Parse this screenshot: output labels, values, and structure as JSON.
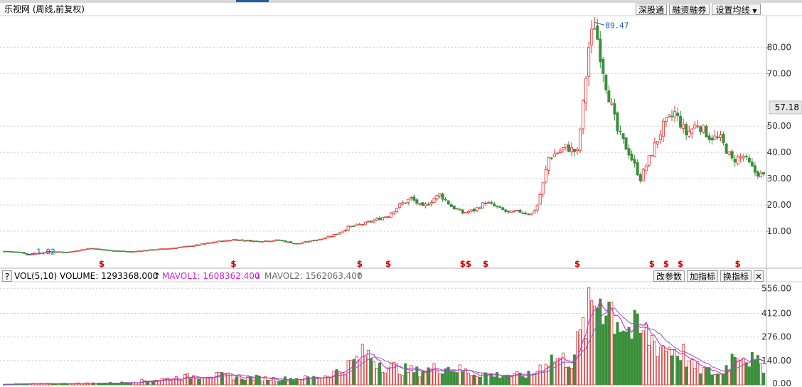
{
  "title": "乐视网 (周线,前复权)",
  "buttons": {
    "shen_gu_tong": "深股通",
    "rong_zi": "融资融券",
    "ma_settings": "设置均线",
    "params": "改参数",
    "add_indicator": "加指标",
    "switch_indicator": "换指标",
    "close": "✕",
    "help": "?"
  },
  "vol_legend": {
    "name": "VOL(5,10)",
    "volume_label": "VOLUME: 1293368.000",
    "mavol1_label": "MAVOL1: 1608362.400",
    "mavol2_label": "MAVOL2: 1562063.400",
    "up_arrow": "↑",
    "down_arrow": "↓"
  },
  "colors": {
    "up": "#e03030",
    "down": "#3a8f3a",
    "mavol1": "#d020d0",
    "mavol2": "#8060c0",
    "annotation": "#1060b0",
    "marker": "#d00000",
    "grid": "#c8c8c8"
  },
  "chart_data": [
    {
      "type": "candlestick",
      "title": "乐视网 (周线,前复权)",
      "y_ticks": [
        10,
        20,
        30,
        40,
        50,
        70,
        80
      ],
      "y_tick_labels": [
        "10.00",
        "20.00",
        "30.00",
        "40.00",
        "50.00",
        "70.00",
        "80.00"
      ],
      "ylim": [
        0,
        92
      ],
      "current_price": "57.18",
      "max_annotation": {
        "label": "89.47",
        "value": 89.47
      },
      "min_annotation": {
        "label": "1.02",
        "value": 1.02
      },
      "marker_symbol": "$",
      "marker_indices": [
        34,
        80,
        124,
        134,
        160,
        162,
        168,
        200,
        226,
        231,
        236,
        256
      ],
      "close_path": [
        [
          0,
          2.4
        ],
        [
          6,
          2.0
        ],
        [
          8,
          1.0
        ],
        [
          16,
          2.3
        ],
        [
          22,
          2.0
        ],
        [
          30,
          3.5
        ],
        [
          36,
          2.8
        ],
        [
          44,
          2.2
        ],
        [
          52,
          3.0
        ],
        [
          58,
          3.5
        ],
        [
          66,
          4.5
        ],
        [
          74,
          6.0
        ],
        [
          80,
          6.8
        ],
        [
          88,
          6.2
        ],
        [
          96,
          6.6
        ],
        [
          102,
          5.2
        ],
        [
          110,
          7.0
        ],
        [
          116,
          9.0
        ],
        [
          120,
          11.5
        ],
        [
          126,
          13.0
        ],
        [
          130,
          14.5
        ],
        [
          134,
          16.0
        ],
        [
          138,
          20.0
        ],
        [
          142,
          22.5
        ],
        [
          146,
          19.0
        ],
        [
          150,
          22.5
        ],
        [
          152,
          24.0
        ],
        [
          156,
          19.5
        ],
        [
          160,
          17.0
        ],
        [
          164,
          18.0
        ],
        [
          168,
          21.0
        ],
        [
          172,
          19.0
        ],
        [
          176,
          17.0
        ],
        [
          180,
          17.5
        ],
        [
          184,
          16.5
        ],
        [
          186,
          20.0
        ],
        [
          188,
          28.0
        ],
        [
          190,
          38.0
        ],
        [
          196,
          42.0
        ],
        [
          200,
          40.0
        ],
        [
          202,
          58.0
        ],
        [
          204,
          80.0
        ],
        [
          206,
          89.0
        ],
        [
          210,
          66.0
        ],
        [
          214,
          48.0
        ],
        [
          218,
          40.0
        ],
        [
          222,
          30.0
        ],
        [
          226,
          40.0
        ],
        [
          230,
          50.0
        ],
        [
          234,
          55.0
        ],
        [
          238,
          47.0
        ],
        [
          242,
          51.0
        ],
        [
          246,
          46.0
        ],
        [
          250,
          45.0
        ],
        [
          254,
          37.0
        ],
        [
          258,
          38.5
        ],
        [
          262,
          32.5
        ],
        [
          265,
          31.0
        ]
      ],
      "total_weeks": 266
    },
    {
      "type": "bar",
      "name": "VOL(5,10)",
      "y_ticks": [
        140,
        276,
        412,
        556
      ],
      "y_tick_labels": [
        "140.00",
        "276.00",
        "412.00",
        "556.00"
      ],
      "ylim": [
        0,
        590
      ],
      "volume_path": [
        [
          0,
          5
        ],
        [
          20,
          8
        ],
        [
          40,
          12
        ],
        [
          56,
          35
        ],
        [
          70,
          60
        ],
        [
          80,
          50
        ],
        [
          96,
          35
        ],
        [
          110,
          45
        ],
        [
          118,
          90
        ],
        [
          126,
          190
        ],
        [
          134,
          110
        ],
        [
          144,
          80
        ],
        [
          154,
          110
        ],
        [
          164,
          70
        ],
        [
          176,
          55
        ],
        [
          184,
          60
        ],
        [
          190,
          160
        ],
        [
          198,
          150
        ],
        [
          204,
          420
        ],
        [
          208,
          560
        ],
        [
          212,
          470
        ],
        [
          218,
          330
        ],
        [
          224,
          300
        ],
        [
          230,
          230
        ],
        [
          236,
          210
        ],
        [
          240,
          110
        ],
        [
          244,
          90
        ],
        [
          250,
          60
        ],
        [
          256,
          220
        ],
        [
          262,
          130
        ],
        [
          265,
          120
        ]
      ]
    }
  ]
}
